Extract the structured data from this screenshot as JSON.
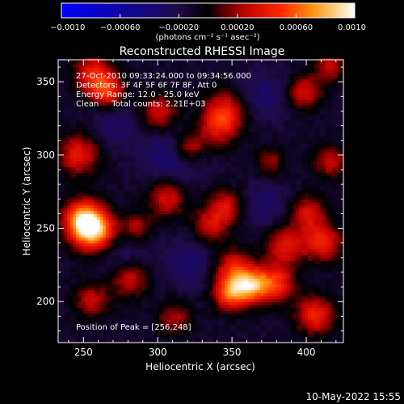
{
  "chart_data": {
    "type": "heatmap",
    "title": "Reconstructed RHESSI Image",
    "xlabel": "Heliocentric X (arcsec)",
    "ylabel": "Heliocentric Y (arcsec)",
    "xlim": [
      233,
      425
    ],
    "ylim": [
      172,
      365
    ],
    "x_ticks": [
      250,
      300,
      350,
      400
    ],
    "y_ticks": [
      200,
      250,
      300,
      350
    ],
    "colorbar": {
      "range": [
        -0.001,
        0.001
      ],
      "tick_values": [
        -0.001,
        -0.0006,
        -0.0002,
        0.0002,
        0.0006,
        0.001
      ],
      "tick_labels": [
        "−0.0010",
        "−0.00060",
        "−0.00020",
        "0.00020",
        "0.00060",
        "0.0010"
      ],
      "unit_label": "(photons cm⁻² s⁻¹ asec⁻²)",
      "colors": [
        "#0000ff",
        "#000000",
        "#ff0000",
        "#ff8800",
        "#ffffff"
      ]
    },
    "annotations": [
      "27-Oct-2010 09:33:24.000 to 09:34:56.000",
      "Detectors: 3F 4F 5F 6F 7F 8F, Att 0",
      "Energy Range: 12.0 - 25.0 keV",
      "Clean     Total counts: 2.21E+03"
    ],
    "peak_label": "Position of Peak = [256,248]",
    "peak": [
      256,
      248
    ],
    "sources": [
      {
        "x": 256,
        "y": 248,
        "value": 0.00095,
        "radius": 10
      },
      {
        "x": 248,
        "y": 256,
        "value": 0.0007,
        "radius": 9
      },
      {
        "x": 246,
        "y": 300,
        "value": 0.0005,
        "radius": 10
      },
      {
        "x": 265,
        "y": 343,
        "value": 0.0006,
        "radius": 8
      },
      {
        "x": 255,
        "y": 355,
        "value": 0.0005,
        "radius": 9
      },
      {
        "x": 300,
        "y": 328,
        "value": 0.00045,
        "radius": 9
      },
      {
        "x": 345,
        "y": 330,
        "value": 0.00045,
        "radius": 10
      },
      {
        "x": 340,
        "y": 318,
        "value": 0.0004,
        "radius": 9
      },
      {
        "x": 320,
        "y": 305,
        "value": 0.0005,
        "radius": 8
      },
      {
        "x": 305,
        "y": 270,
        "value": 0.00045,
        "radius": 9
      },
      {
        "x": 345,
        "y": 265,
        "value": 0.0004,
        "radius": 8
      },
      {
        "x": 335,
        "y": 252,
        "value": 0.0004,
        "radius": 9
      },
      {
        "x": 350,
        "y": 222,
        "value": 0.0005,
        "radius": 9
      },
      {
        "x": 362,
        "y": 210,
        "value": 0.00075,
        "radius": 8
      },
      {
        "x": 348,
        "y": 205,
        "value": 0.0007,
        "radius": 8
      },
      {
        "x": 378,
        "y": 212,
        "value": 0.0006,
        "radius": 9
      },
      {
        "x": 385,
        "y": 238,
        "value": 0.0005,
        "radius": 9
      },
      {
        "x": 410,
        "y": 240,
        "value": 0.00055,
        "radius": 9
      },
      {
        "x": 400,
        "y": 260,
        "value": 0.00045,
        "radius": 8
      },
      {
        "x": 415,
        "y": 295,
        "value": 0.0004,
        "radius": 8
      },
      {
        "x": 398,
        "y": 342,
        "value": 0.00045,
        "radius": 8
      },
      {
        "x": 415,
        "y": 360,
        "value": 0.00035,
        "radius": 8
      },
      {
        "x": 280,
        "y": 215,
        "value": 0.00045,
        "radius": 9
      },
      {
        "x": 255,
        "y": 200,
        "value": 0.0004,
        "radius": 8
      },
      {
        "x": 405,
        "y": 190,
        "value": 0.00055,
        "radius": 9
      },
      {
        "x": 310,
        "y": 188,
        "value": 0.00035,
        "radius": 8
      },
      {
        "x": 285,
        "y": 250,
        "value": 0.00035,
        "radius": 7
      },
      {
        "x": 375,
        "y": 295,
        "value": 0.0003,
        "radius": 7
      },
      {
        "x": 310,
        "y": 300,
        "value": -0.0003,
        "radius": 14
      },
      {
        "x": 270,
        "y": 320,
        "value": -0.0002,
        "radius": 11
      },
      {
        "x": 370,
        "y": 340,
        "value": -0.00022,
        "radius": 12
      },
      {
        "x": 275,
        "y": 230,
        "value": -0.00018,
        "radius": 12
      },
      {
        "x": 372,
        "y": 265,
        "value": -0.0002,
        "radius": 11
      },
      {
        "x": 320,
        "y": 225,
        "value": -0.00022,
        "radius": 12
      }
    ],
    "background": -0.00012
  },
  "footer": {
    "date": "10-May-2022 15:55"
  }
}
